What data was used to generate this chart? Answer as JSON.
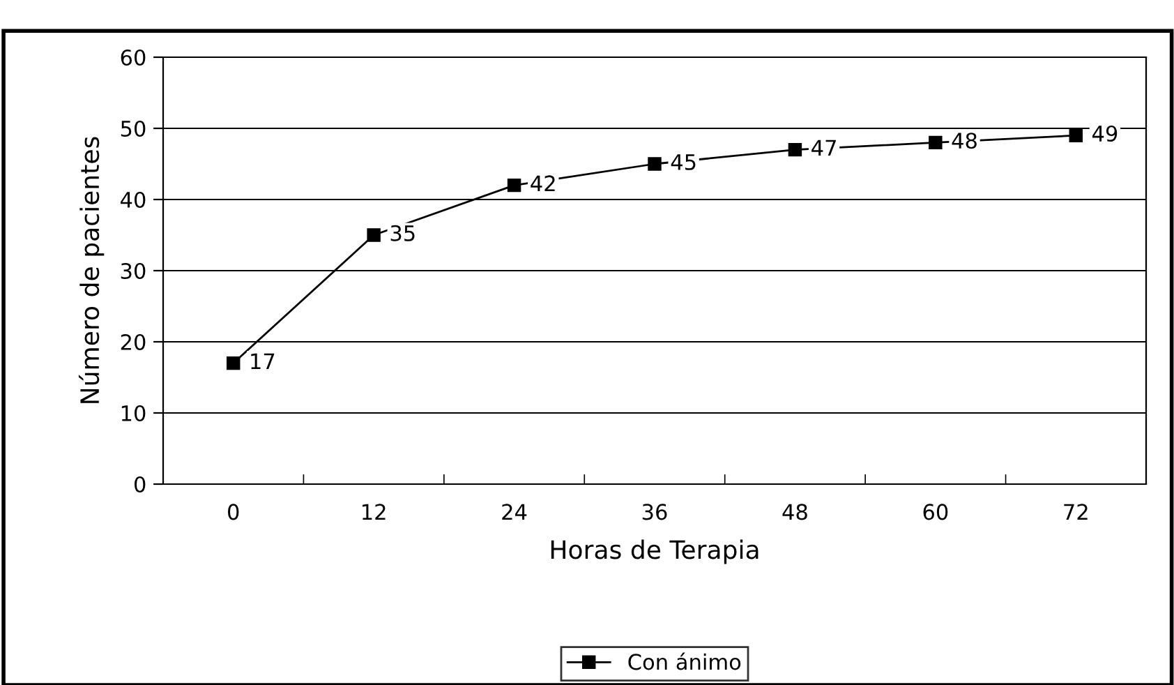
{
  "chart_data": {
    "type": "line",
    "xlabel": "Horas de Terapia",
    "ylabel": "Número de pacientes",
    "categories": [
      "0",
      "12",
      "24",
      "36",
      "48",
      "60",
      "72"
    ],
    "series": [
      {
        "name": "Con ánimo",
        "color": "#000000",
        "values": [
          17,
          35,
          42,
          45,
          47,
          48,
          49
        ]
      }
    ],
    "ylim": [
      0,
      60
    ],
    "yticks": [
      0,
      10,
      20,
      30,
      40,
      50,
      60
    ],
    "grid": "y",
    "legend": "bottom",
    "marker": "square",
    "line_style": "solid",
    "data_labels": true
  }
}
